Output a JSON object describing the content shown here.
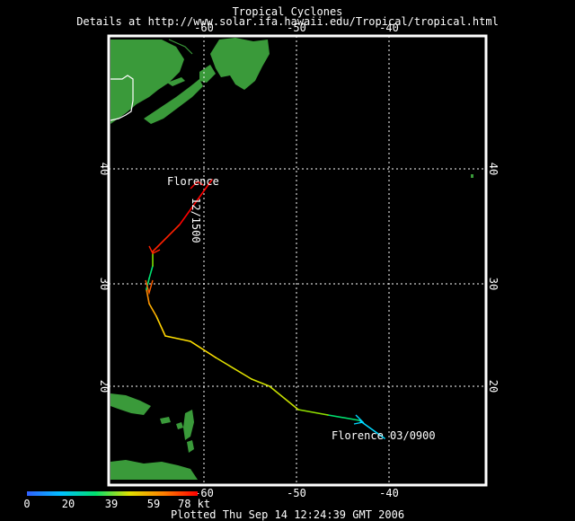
{
  "header": {
    "title": "Tropical Cyclones",
    "subtitle": "Details at http://www.solar.ifa.hawaii.edu/Tropical/tropical.html"
  },
  "map": {
    "lon_ticks_top": [
      "-60",
      "-50",
      "-40"
    ],
    "lon_ticks_bottom": [
      "-60",
      "-50",
      "-40"
    ],
    "lat_ticks_left": [
      "40",
      "30",
      "20"
    ],
    "lat_ticks_right": [
      "40",
      "30",
      "20"
    ],
    "land_color": "#3a9a3a",
    "track_colors": [
      "#00d8ff",
      "#00e070",
      "#c8e000",
      "#ffe000",
      "#ff8000",
      "#ff0000"
    ]
  },
  "storm": {
    "name": "Florence",
    "label_start": "Florence 03/0900",
    "label_end": "Florence",
    "label_end_time": "12/1500"
  },
  "legend": {
    "ticks": [
      "0",
      "20",
      "39",
      "59",
      "78 kt"
    ],
    "colors": [
      "#3060ff",
      "#00c0ff",
      "#00e070",
      "#e0e000",
      "#ff8000",
      "#ff0000"
    ]
  },
  "footer": "Plotted Thu Sep 14 12:24:39 GMT 2006"
}
